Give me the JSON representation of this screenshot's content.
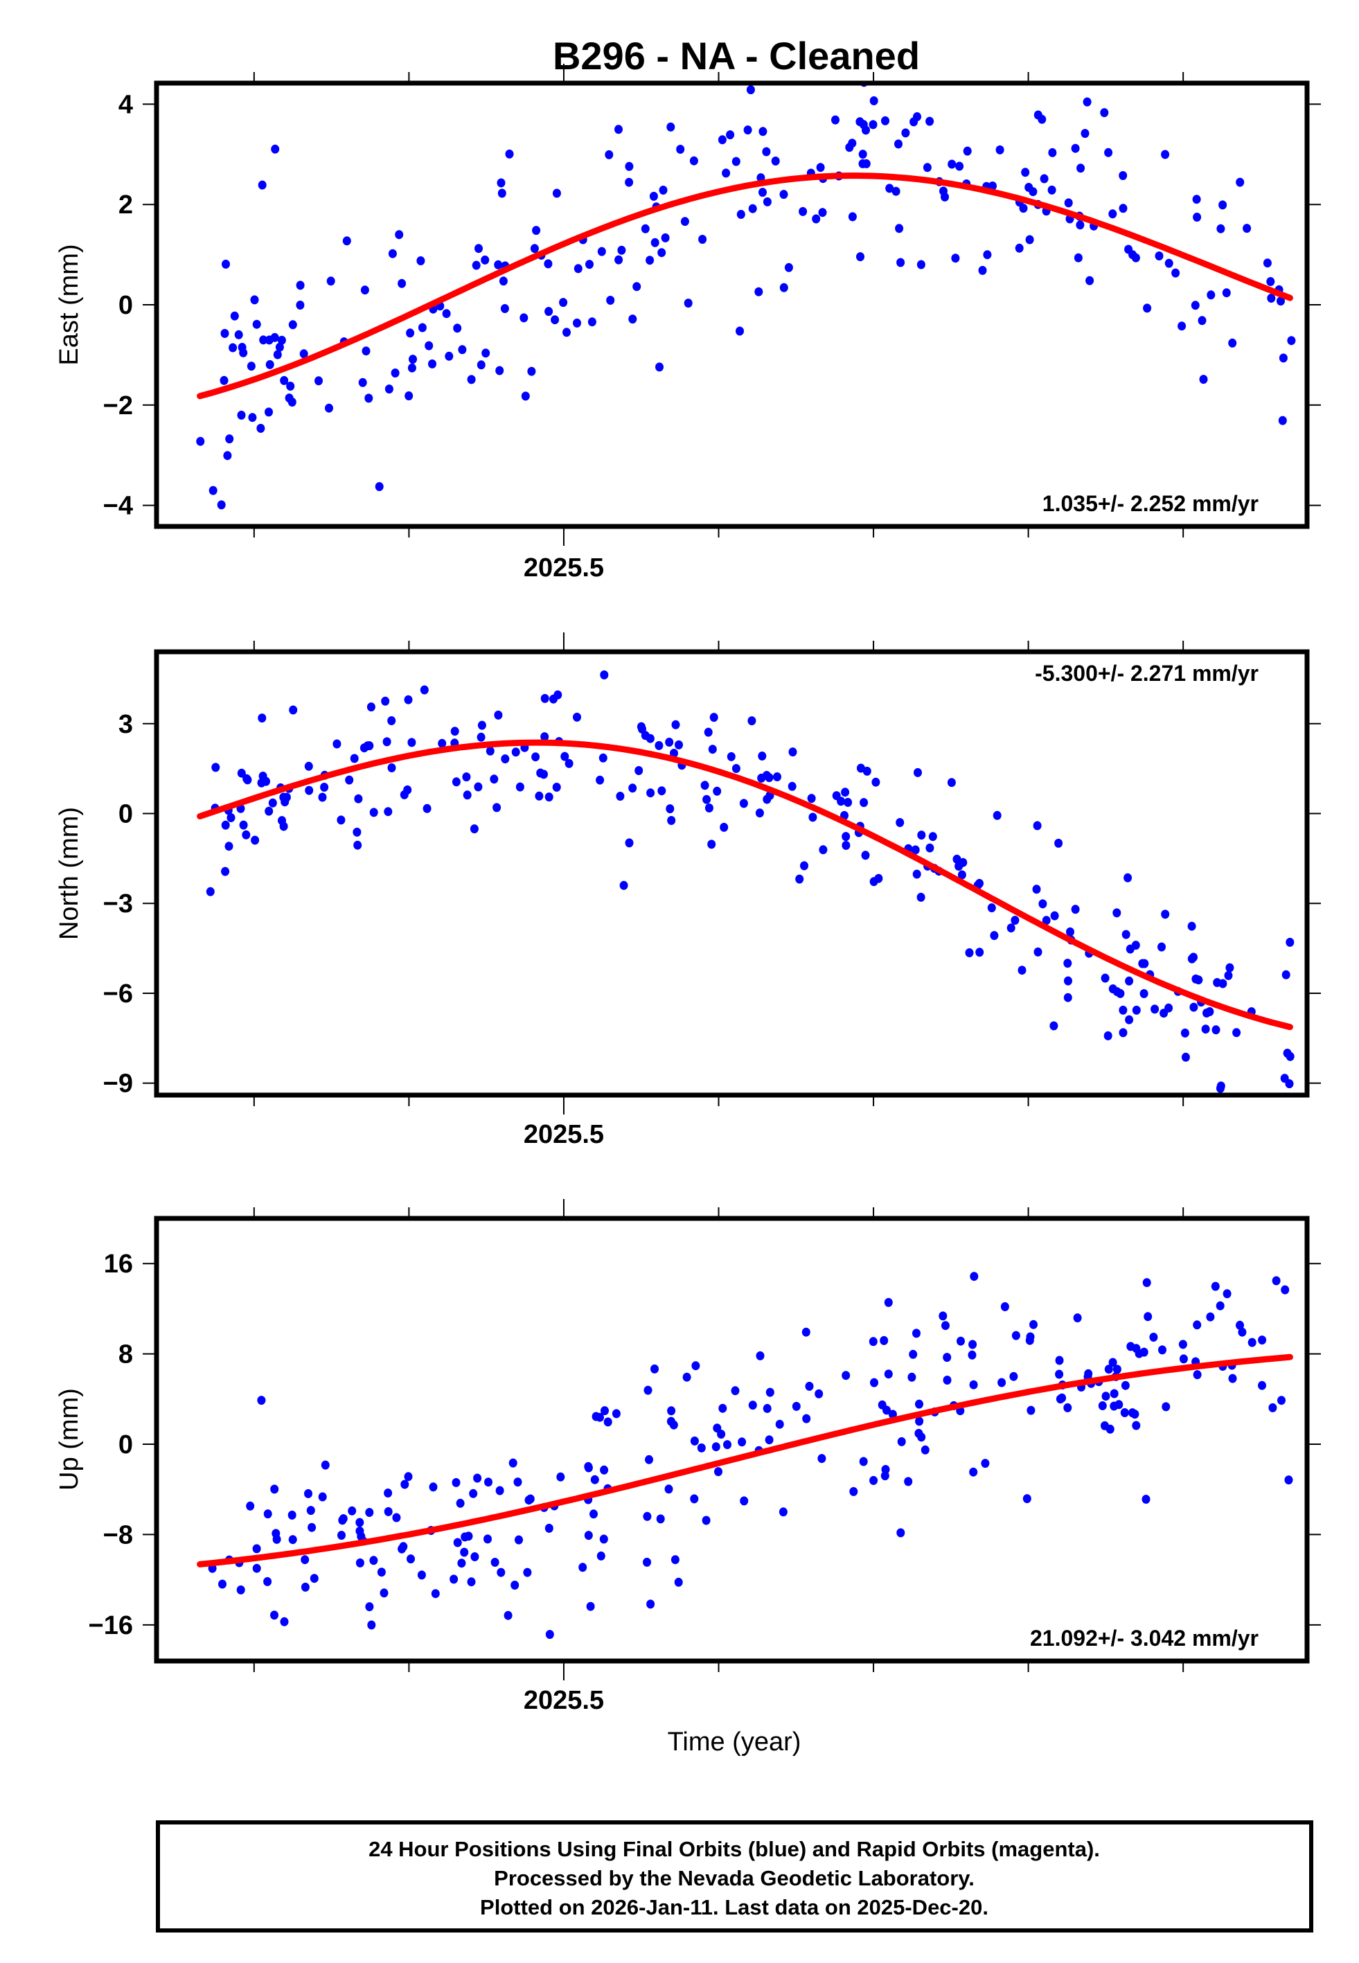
{
  "chart_data": {
    "type": "scatter",
    "title": "B296  - NA - Cleaned",
    "xlabel": "Time (year)",
    "xlim": [
      2025.237,
      2025.98
    ],
    "x_major_tick_label": "2025.5",
    "x_ticks": [
      2025.3,
      2025.4,
      2025.5,
      2025.6,
      2025.7,
      2025.8,
      2025.9
    ],
    "marker_color": "#0000ff",
    "fit_color": "#ff0000",
    "panels": [
      {
        "name": "east",
        "ylabel": "East (mm)",
        "ylim": [
          -4.42,
          4.42
        ],
        "yticks": [
          4,
          2,
          0,
          -2,
          -4
        ],
        "ytick_labels": [
          "4",
          "2",
          "0",
          "−2",
          "−4"
        ],
        "rate": "1.035+/- 2.252 mm/yr",
        "rate_position": "bottom-right",
        "fit": {
          "offset": 0.35,
          "trend": 1.035,
          "amp": 2.15,
          "phase_year": 2025.675,
          "period": 1.0
        },
        "noise": 1.25,
        "seed": 11
      },
      {
        "name": "north",
        "ylabel": "North (mm)",
        "ylim": [
          -9.4,
          5.4
        ],
        "yticks": [
          3,
          0,
          -3,
          -6,
          -9
        ],
        "ytick_labels": [
          "3",
          "0",
          "−3",
          "−6",
          "−9"
        ],
        "rate": "-5.300+/- 2.271 mm/yr",
        "rate_position": "top-right",
        "fit": {
          "offset": -1.8,
          "trend": -5.3,
          "amp": 3.6,
          "phase_year": 2025.52,
          "period": 1.0
        },
        "noise": 1.25,
        "seed": 23
      },
      {
        "name": "up",
        "ylabel": "Up (mm)",
        "ylim": [
          -19.2,
          20.0
        ],
        "yticks": [
          16,
          8,
          0,
          -8,
          -16
        ],
        "ytick_labels": [
          "16",
          "8",
          "0",
          "−8",
          "−16"
        ],
        "rate": "21.092+/- 3.042 mm/yr",
        "rate_position": "bottom-right",
        "fit": {
          "offset": -1.5,
          "trend": 21.092,
          "amp": 2.2,
          "phase_year": 2025.85,
          "period": 1.0
        },
        "noise": 4.6,
        "seed": 37
      }
    ],
    "n_points": 250
  },
  "footer": {
    "line1": "24 Hour Positions Using Final Orbits (blue) and Rapid Orbits (magenta).",
    "line2": "Processed by the Nevada Geodetic Laboratory.",
    "line3": "Plotted on 2026-Jan-11. Last data on 2025-Dec-20."
  }
}
